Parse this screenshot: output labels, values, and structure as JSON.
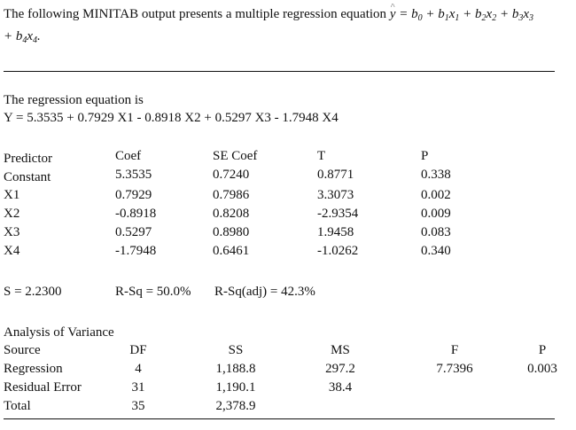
{
  "intro": {
    "text": "The following MINITAB output presents a multiple regression equation",
    "equation_lhs": "y",
    "equation_rhs_line1": " = b0 + b1x1 + b2x2 + b3x3",
    "equation_rhs_line2": "+ b4x4."
  },
  "regression": {
    "heading": "The regression equation is",
    "equation": "Y =  5.3535 + 0.7929 X1 - 0.8918 X2 + 0.5297 X3 - 1.7948 X4"
  },
  "coef_table": {
    "headers": [
      "Predictor",
      "Coef",
      "SE Coef",
      "T",
      "P"
    ],
    "rows": [
      [
        "Constant",
        "5.3535",
        "0.7240",
        "0.8771",
        "0.338"
      ],
      [
        "X1",
        "0.7929",
        "0.7986",
        "3.3073",
        "0.002"
      ],
      [
        "X2",
        "-0.8918",
        "0.8208",
        "-2.9354",
        "0.009"
      ],
      [
        "X3",
        "0.5297",
        "0.8980",
        "1.9458",
        "0.083"
      ],
      [
        "X4",
        "-1.7948",
        "0.6461",
        "-1.0262",
        "0.340"
      ]
    ]
  },
  "fit_stats": {
    "s": "S = 2.2300",
    "rsq": "R-Sq = 50.0%",
    "rsq_adj": "R-Sq(adj) = 42.3%"
  },
  "anova": {
    "title": "Analysis of Variance",
    "headers": [
      "Source",
      "DF",
      "SS",
      "MS",
      "F",
      "P"
    ],
    "rows": [
      [
        "Regression",
        "4",
        "1,188.8",
        "297.2",
        "7.7396",
        "0.003"
      ],
      [
        "Residual Error",
        "31",
        "1,190.1",
        "38.4",
        "",
        ""
      ],
      [
        "Total",
        "35",
        "2,378.9",
        "",
        "",
        ""
      ]
    ]
  }
}
